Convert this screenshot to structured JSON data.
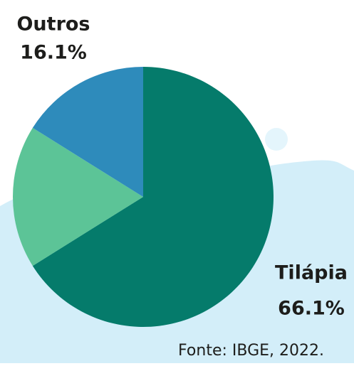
{
  "chart_data": {
    "type": "pie",
    "categories": [
      "Tilápia",
      null,
      "Outros"
    ],
    "values": [
      66.1,
      17.8,
      16.1
    ],
    "value_labels": [
      "66.1%",
      null,
      "16.1%"
    ],
    "colors": [
      "#057b6b",
      "#5cc497",
      "#2e8bbb"
    ],
    "source": "Fonte: IBGE, 2022."
  }
}
